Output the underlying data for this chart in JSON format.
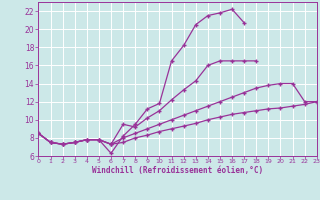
{
  "bg_color": "#cce8e8",
  "grid_color": "#b0d0d0",
  "line_color": "#993399",
  "marker": "+",
  "xlabel": "Windchill (Refroidissement éolien,°C)",
  "xlim": [
    0,
    23
  ],
  "ylim": [
    6,
    23
  ],
  "xticks": [
    0,
    1,
    2,
    3,
    4,
    5,
    6,
    7,
    8,
    9,
    10,
    11,
    12,
    13,
    14,
    15,
    16,
    17,
    18,
    19,
    20,
    21,
    22,
    23
  ],
  "yticks": [
    6,
    8,
    10,
    12,
    14,
    16,
    18,
    20,
    22
  ],
  "line1_x": [
    0,
    1,
    2,
    3,
    4,
    5,
    6,
    7,
    8,
    9,
    10,
    11,
    12,
    13,
    14,
    15,
    16,
    17
  ],
  "line1_y": [
    8.5,
    7.5,
    7.3,
    7.5,
    7.8,
    7.8,
    6.3,
    8.2,
    9.5,
    11.2,
    11.8,
    16.5,
    18.2,
    20.5,
    21.5,
    21.8,
    22.2,
    20.7
  ],
  "line2_x": [
    0,
    1,
    2,
    3,
    4,
    5,
    6,
    7,
    8,
    9,
    10,
    11,
    12,
    13,
    14,
    15,
    16,
    17,
    18,
    19,
    20,
    21,
    22,
    23
  ],
  "line2_y": [
    8.5,
    7.5,
    7.3,
    7.5,
    7.8,
    7.8,
    7.3,
    7.5,
    8.0,
    8.3,
    8.7,
    9.0,
    9.3,
    9.6,
    10.0,
    10.3,
    10.6,
    10.8,
    11.0,
    11.2,
    11.3,
    11.5,
    11.7,
    12.0
  ],
  "line3_x": [
    0,
    1,
    2,
    3,
    4,
    5,
    6,
    7,
    8,
    9,
    10,
    11,
    12,
    13,
    14,
    15,
    16,
    17,
    18,
    19,
    20,
    21,
    22,
    23
  ],
  "line3_y": [
    8.5,
    7.5,
    7.3,
    7.5,
    7.8,
    7.8,
    7.3,
    8.0,
    8.5,
    9.0,
    9.5,
    10.0,
    10.5,
    11.0,
    11.5,
    12.0,
    12.5,
    13.0,
    13.5,
    13.8,
    14.0,
    14.0,
    12.0,
    12.0
  ],
  "line4_x": [
    0,
    1,
    2,
    3,
    4,
    5,
    6,
    7,
    8,
    9,
    10,
    11,
    12,
    13,
    14,
    15,
    16,
    17,
    18,
    19,
    20,
    21,
    22,
    23
  ],
  "line4_y": [
    8.5,
    7.5,
    7.3,
    7.5,
    7.8,
    7.8,
    7.3,
    9.5,
    9.2,
    10.2,
    11.0,
    12.2,
    13.3,
    14.3,
    16.0,
    16.5,
    16.5,
    16.5,
    16.5,
    null,
    null,
    null,
    null,
    null
  ]
}
